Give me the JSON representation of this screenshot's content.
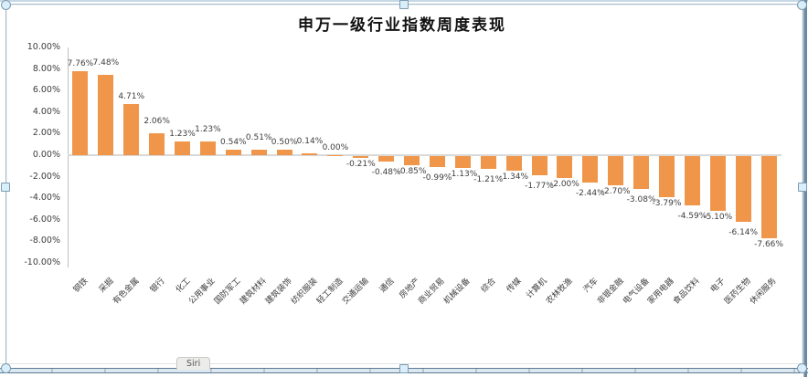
{
  "window": {
    "sheet_tab": "Siri"
  },
  "colors": {
    "bar": "#F0964A",
    "axis_line": "#BFBFBF",
    "zero_line": "#D9D9D9",
    "frame_border": "#A9BAC7",
    "handle_fill": "#D9EEFB",
    "handle_border": "#7F9BB0",
    "pane_edge": "#5A7A96"
  },
  "chart_data": {
    "type": "bar",
    "title": "申万一级行业指数周度表现",
    "xlabel": "",
    "ylabel": "",
    "ylim": [
      -10,
      10
    ],
    "grid": false,
    "legend": false,
    "bar_color": "#F0964A",
    "y_ticks": [
      "10.00%",
      "8.00%",
      "6.00%",
      "4.00%",
      "2.00%",
      "0.00%",
      "-2.00%",
      "-4.00%",
      "-6.00%",
      "-8.00%",
      "-10.00%"
    ],
    "categories": [
      "钢铁",
      "采掘",
      "有色金属",
      "银行",
      "化工",
      "公用事业",
      "国防军工",
      "建筑材料",
      "建筑装饰",
      "纺织服装",
      "轻工制造",
      "交通运输",
      "通信",
      "房地产",
      "商业贸易",
      "机械设备",
      "综合",
      "传媒",
      "计算机",
      "农林牧渔",
      "汽车",
      "非银金融",
      "电气设备",
      "家用电器",
      "食品饮料",
      "电子",
      "医药生物",
      "休闲服务"
    ],
    "values": [
      7.76,
      7.48,
      4.71,
      2.06,
      1.23,
      1.23,
      0.54,
      0.51,
      0.5,
      0.14,
      0.0,
      -0.21,
      -0.48,
      -0.85,
      -0.99,
      -1.13,
      -1.21,
      -1.34,
      -1.77,
      -2.0,
      -2.44,
      -2.7,
      -3.08,
      -3.79,
      -4.59,
      -5.1,
      -6.14,
      -7.66
    ],
    "value_labels": [
      "7.76%",
      "7.48%",
      "4.71%",
      "2.06%",
      "1.23%",
      "1.23%",
      "0.54%",
      "0.51%",
      "0.50%",
      "0.14%",
      "0.00%",
      "-0.21%",
      "-0.48%",
      "-0.85%",
      "-0.99%",
      "-1.13%",
      "-1.21%",
      "-1.34%",
      "-1.77%",
      "-2.00%",
      "-2.44%",
      "-2.70%",
      "-3.08%",
      "-3.79%",
      "-4.59%",
      "-5.10%",
      "-6.14%",
      "-7.66%"
    ]
  }
}
